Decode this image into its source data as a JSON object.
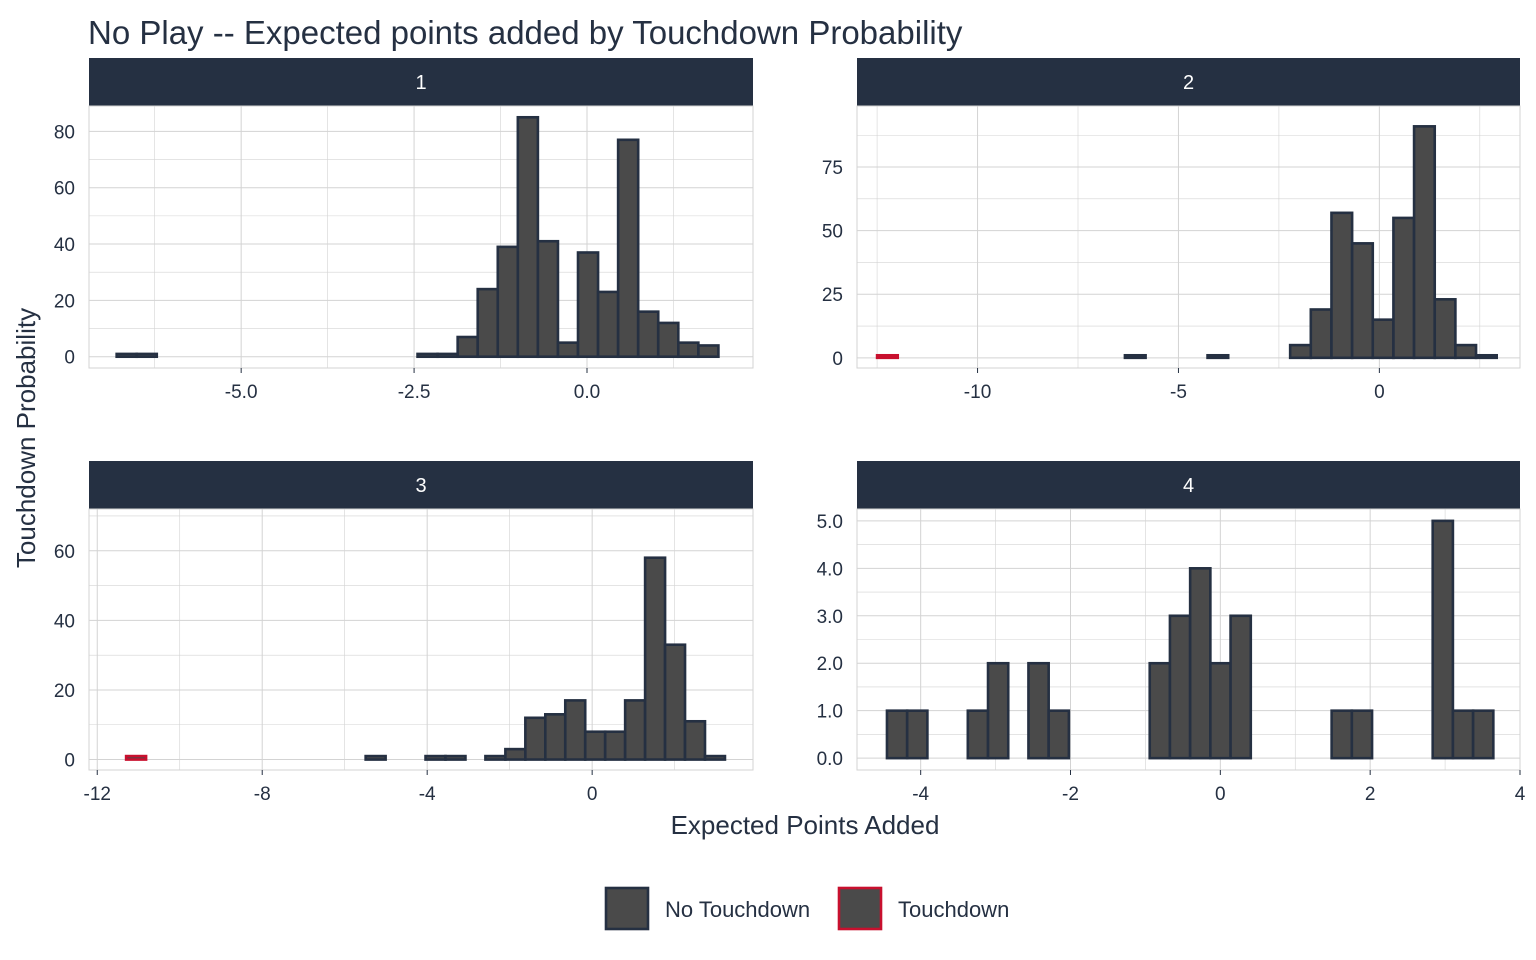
{
  "chart_data": {
    "type": "bar",
    "title": "No Play -- Expected points added by Touchdown Probability",
    "xlabel": "Expected Points Added",
    "ylabel": "Touchdown Probability",
    "grid": true,
    "legend_position": "bottom",
    "colors": {
      "bar_fill": "#4a4a4a",
      "no_touchdown_outline": "#253042",
      "touchdown_outline": "#c8102e",
      "strip": "#253042",
      "grid": "#d3d3d3",
      "text": "#253042"
    },
    "legend": [
      {
        "label": "No Touchdown",
        "key": "no_touchdown"
      },
      {
        "label": "Touchdown",
        "key": "touchdown"
      }
    ],
    "panels": [
      {
        "label": "1",
        "xlim": [
          -7.2,
          2.4
        ],
        "ylim": [
          -4,
          89
        ],
        "x_breaks": [
          -5.0,
          -2.5,
          0.0
        ],
        "x_labels": [
          "-5.0",
          "-2.5",
          "0.0"
        ],
        "y_breaks": [
          0,
          20,
          40,
          60,
          80
        ],
        "y_labels": [
          "0",
          "20",
          "40",
          "60",
          "80"
        ],
        "bin_start": -6.8,
        "bin_width": 0.29,
        "series": [
          {
            "name": "No Touchdown",
            "key": "no_touchdown",
            "values": [
              1,
              1,
              0,
              0,
              0,
              0,
              0,
              0,
              0,
              0,
              0,
              0,
              0,
              0,
              0,
              1,
              1,
              7,
              24,
              39,
              85,
              41,
              5,
              37,
              23,
              77,
              16,
              12,
              5,
              4
            ]
          }
        ]
      },
      {
        "label": "2",
        "xlim": [
          -13.0,
          3.5
        ],
        "ylim": [
          -4,
          99
        ],
        "x_breaks": [
          -10,
          -5,
          0
        ],
        "x_labels": [
          "-10",
          "-5",
          "0"
        ],
        "y_breaks": [
          0,
          25,
          50,
          75
        ],
        "y_labels": [
          "0",
          "25",
          "50",
          "75"
        ],
        "bin_start": -12.5,
        "bin_width": 0.514,
        "series": [
          {
            "name": "No Touchdown",
            "key": "no_touchdown",
            "values": [
              0,
              0,
              0,
              0,
              0,
              0,
              0,
              0,
              0,
              0,
              0,
              0,
              1,
              0,
              0,
              0,
              1,
              0,
              0,
              0,
              5,
              19,
              57,
              45,
              15,
              55,
              91,
              23,
              5,
              1
            ]
          },
          {
            "name": "Touchdown",
            "key": "touchdown",
            "values": [
              1,
              0,
              0,
              0,
              0,
              0,
              0,
              0,
              0,
              0,
              0,
              0,
              0,
              0,
              0,
              0,
              0,
              0,
              0,
              0,
              0,
              0,
              0,
              0,
              0,
              0,
              0,
              0,
              0,
              0
            ]
          }
        ]
      },
      {
        "label": "3",
        "xlim": [
          -12.2,
          3.9
        ],
        "ylim": [
          -3,
          72
        ],
        "x_breaks": [
          -12,
          -8,
          -4,
          0
        ],
        "x_labels": [
          "-12",
          "-8",
          "-4",
          "0"
        ],
        "y_breaks": [
          0,
          20,
          40,
          60
        ],
        "y_labels": [
          "0",
          "20",
          "40",
          "60"
        ],
        "bin_start": -11.3,
        "bin_width": 0.484,
        "series": [
          {
            "name": "No Touchdown",
            "key": "no_touchdown",
            "values": [
              0,
              0,
              0,
              0,
              0,
              0,
              0,
              0,
              0,
              0,
              0,
              0,
              1,
              0,
              0,
              1,
              1,
              0,
              1,
              3,
              12,
              13,
              17,
              8,
              8,
              17,
              58,
              33,
              11,
              1
            ]
          },
          {
            "name": "Touchdown",
            "key": "touchdown",
            "values": [
              1,
              0,
              0,
              0,
              0,
              0,
              0,
              0,
              0,
              0,
              0,
              0,
              0,
              0,
              0,
              0,
              0,
              0,
              0,
              0,
              0,
              0,
              0,
              0,
              0,
              0,
              0,
              0,
              0,
              0
            ]
          }
        ]
      },
      {
        "label": "4",
        "xlim": [
          -4.85,
          4.0
        ],
        "ylim": [
          -0.25,
          5.25
        ],
        "x_breaks": [
          -4,
          -2,
          0,
          2,
          4
        ],
        "x_labels": [
          "-4",
          "-2",
          "0",
          "2",
          "4"
        ],
        "y_breaks": [
          0,
          1,
          2,
          3,
          4,
          5
        ],
        "y_labels": [
          "0.0",
          "1.0",
          "2.0",
          "3.0",
          "4.0",
          "5.0"
        ],
        "bin_start": -4.45,
        "bin_width": 0.2698,
        "series": [
          {
            "name": "No Touchdown",
            "key": "no_touchdown",
            "values": [
              1,
              1,
              0,
              0,
              1,
              2,
              0,
              2,
              1,
              0,
              0,
              0,
              0,
              2,
              3,
              4,
              2,
              3,
              0,
              0,
              0,
              0,
              1,
              1,
              0,
              0,
              0,
              5,
              1,
              1
            ]
          }
        ]
      }
    ]
  }
}
